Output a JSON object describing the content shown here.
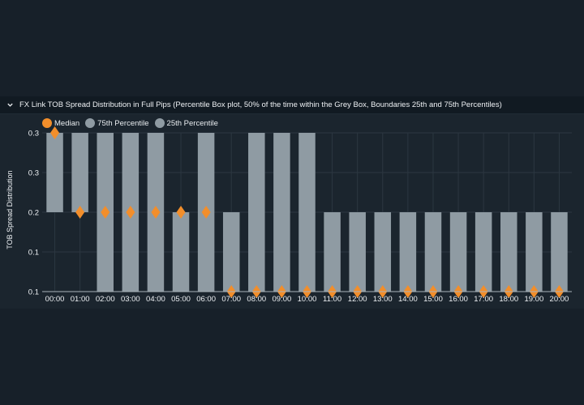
{
  "panel": {
    "title": "FX Link TOB Spread Distribution in Full Pips (Percentile Box plot, 50% of the time within the Grey Box, Boundaries 25th and 75th Percentiles)",
    "collapse_icon": "chevron-down-icon"
  },
  "legend": {
    "items": [
      {
        "label": "Median",
        "color": "#f28e2b"
      },
      {
        "label": "75th Percentile",
        "color": "#8f9ba3"
      },
      {
        "label": "25th Percentile",
        "color": "#8f9ba3"
      }
    ]
  },
  "colors": {
    "box": "#8f9ba3",
    "median": "#f28e2b",
    "grid": "#2c3741",
    "axis": "#aab3ba"
  },
  "chart_data": {
    "type": "box",
    "title": "FX Link TOB Spread Distribution in Full Pips (Percentile Box plot, 50% of the time within the Grey Box, Boundaries 25th and 75th Percentiles)",
    "xlabel": "",
    "ylabel": "TOB Spread Distribution",
    "ylim": [
      0.1,
      0.3
    ],
    "yticks": [
      "0.1",
      "0.1",
      "0.2",
      "0.3",
      "0.3"
    ],
    "grid": true,
    "legend_position": "top-left",
    "categories": [
      "00:00",
      "01:00",
      "02:00",
      "03:00",
      "04:00",
      "05:00",
      "06:00",
      "07:00",
      "08:00",
      "09:00",
      "10:00",
      "11:00",
      "12:00",
      "13:00",
      "14:00",
      "15:00",
      "16:00",
      "17:00",
      "18:00",
      "19:00",
      "20:00"
    ],
    "series": [
      {
        "name": "75th Percentile",
        "values": [
          0.3,
          0.3,
          0.3,
          0.3,
          0.3,
          0.2,
          0.3,
          0.2,
          0.3,
          0.3,
          0.3,
          0.2,
          0.2,
          0.2,
          0.2,
          0.2,
          0.2,
          0.2,
          0.2,
          0.2,
          0.2
        ]
      },
      {
        "name": "25th Percentile",
        "values": [
          0.2,
          0.2,
          0.1,
          0.1,
          0.1,
          0.1,
          0.1,
          0.1,
          0.1,
          0.1,
          0.1,
          0.1,
          0.1,
          0.1,
          0.1,
          0.1,
          0.1,
          0.1,
          0.1,
          0.1,
          0.1
        ]
      },
      {
        "name": "Median",
        "values": [
          0.3,
          0.2,
          0.2,
          0.2,
          0.2,
          0.2,
          0.2,
          0.1,
          0.1,
          0.1,
          0.1,
          0.1,
          0.1,
          0.1,
          0.1,
          0.1,
          0.1,
          0.1,
          0.1,
          0.1,
          0.1
        ]
      }
    ]
  }
}
